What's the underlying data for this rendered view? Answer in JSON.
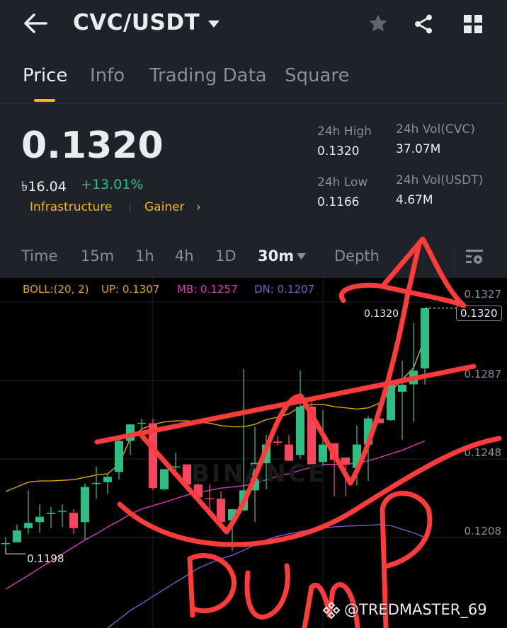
{
  "header": {
    "title": "CVC/USDT",
    "icons": [
      "back-arrow-icon",
      "dropdown-caret-icon",
      "star-icon",
      "share-icon",
      "grid-icon"
    ]
  },
  "tabs": [
    {
      "label": "Price",
      "active": true
    },
    {
      "label": "Info"
    },
    {
      "label": "Trading Data"
    },
    {
      "label": "Square"
    }
  ],
  "ticker": {
    "last_price": "0.1320",
    "fiat_price": "৳16.04",
    "change": "+13.01%",
    "tags": [
      "Infrastructure",
      "Gainer"
    ],
    "tag_chevron": "›",
    "stats": [
      {
        "label": "24h High",
        "value": "0.1320"
      },
      {
        "label": "24h Vol(CVC)",
        "value": "37.07M"
      },
      {
        "label": "24h Low",
        "value": "0.1166"
      },
      {
        "label": "24h Vol(USDT)",
        "value": "4.67M"
      }
    ]
  },
  "timeframes": {
    "items": [
      "Time",
      "15m",
      "1h",
      "4h",
      "1D",
      "30m",
      "Depth"
    ],
    "selected": "30m"
  },
  "colors": {
    "accent": "#f0b90b",
    "up": "#2ebd85",
    "down": "#f6465d",
    "boll_up": "#e0a800",
    "boll_mb": "#d63bb6",
    "boll_dn": "#7b5cc4",
    "annotation": "#ff3b3b"
  },
  "indicator": {
    "name": "BOLL:(20, 2)",
    "up": "UP: 0.1307",
    "mb": "MB: 0.1257",
    "dn": "DN: 0.1207"
  },
  "chart_data": {
    "type": "candlestick",
    "interval": "30m",
    "y_ticks": [
      "0.1327",
      "0.1287",
      "0.1248",
      "0.1208"
    ],
    "ylim": [
      0.1159,
      0.1335
    ],
    "last_price_label": "0.1320",
    "high_marker": "0.1320",
    "low_marker": "0.1198",
    "candles": [
      [
        0.12015,
        0.12048,
        0.1198,
        0.1202
      ],
      [
        0.12024,
        0.12113,
        0.12024,
        0.12083
      ],
      [
        0.12095,
        0.12285,
        0.12066,
        0.12121
      ],
      [
        0.12125,
        0.12214,
        0.12072,
        0.12152
      ],
      [
        0.12166,
        0.12202,
        0.12095,
        0.12172
      ],
      [
        0.12178,
        0.12214,
        0.12101,
        0.12182
      ],
      [
        0.12172,
        0.1219,
        0.12066,
        0.12095
      ],
      [
        0.12125,
        0.1232,
        0.12036,
        0.12302
      ],
      [
        0.12318,
        0.12404,
        0.12243,
        0.12322
      ],
      [
        0.12326,
        0.12368,
        0.12267,
        0.12353
      ],
      [
        0.12377,
        0.12545,
        0.12338,
        0.12533
      ],
      [
        0.12533,
        0.12616,
        0.12462,
        0.12616
      ],
      [
        0.1262,
        0.12646,
        0.12587,
        0.12624
      ],
      [
        0.12622,
        0.12646,
        0.12285,
        0.12296
      ],
      [
        0.1229,
        0.12391,
        0.12285,
        0.12391
      ],
      [
        0.124,
        0.12474,
        0.12368,
        0.12405
      ],
      [
        0.12415,
        0.12415,
        0.12308,
        0.12314
      ],
      [
        0.12314,
        0.1232,
        0.12249,
        0.12249
      ],
      [
        0.12245,
        0.12314,
        0.12178,
        0.12241
      ],
      [
        0.12243,
        0.12279,
        0.12119,
        0.12125
      ],
      [
        0.12134,
        0.1219,
        0.1198,
        0.1219
      ],
      [
        0.12184,
        0.12894,
        0.12178,
        0.12285
      ],
      [
        0.12285,
        0.12604,
        0.12125,
        0.12423
      ],
      [
        0.12421,
        0.12563,
        0.1229,
        0.12515
      ],
      [
        0.1253,
        0.12557,
        0.1251,
        0.12524
      ],
      [
        0.12515,
        0.12563,
        0.12433,
        0.12433
      ],
      [
        0.12462,
        0.12888,
        0.12444,
        0.12705
      ],
      [
        0.12705,
        0.12746,
        0.12415,
        0.12415
      ],
      [
        0.12427,
        0.12687,
        0.12409,
        0.12515
      ],
      [
        0.12521,
        0.12521,
        0.12255,
        0.12438
      ],
      [
        0.1245,
        0.1245,
        0.12255,
        0.12415
      ],
      [
        0.12397,
        0.1261,
        0.12308,
        0.12515
      ],
      [
        0.12515,
        0.12658,
        0.12332,
        0.12646
      ],
      [
        0.12646,
        0.12646,
        0.12622,
        0.12622
      ],
      [
        0.12637,
        0.12835,
        0.12634,
        0.12817
      ],
      [
        0.1278,
        0.12936,
        0.12539,
        0.12815
      ],
      [
        0.12817,
        0.13125,
        0.12628,
        0.12886
      ],
      [
        0.12898,
        0.132,
        0.12817,
        0.132
      ]
    ],
    "boll_up": [
      0.12279,
      0.12302,
      0.12326,
      0.12332,
      0.12332,
      0.12335,
      0.12338,
      0.1235,
      0.12362,
      0.12368,
      0.12415,
      0.12545,
      0.12592,
      0.12616,
      0.12628,
      0.12634,
      0.12634,
      0.12628,
      0.12622,
      0.1261,
      0.12604,
      0.12604,
      0.12616,
      0.1264,
      0.12652,
      0.12669,
      0.12705,
      0.12717,
      0.12717,
      0.12705,
      0.12699,
      0.12693,
      0.12699,
      0.12723,
      0.12782,
      0.12841,
      0.129,
      0.1305
    ],
    "boll_mb": [
      0.11788,
      0.11823,
      0.11858,
      0.11894,
      0.11929,
      0.11965,
      0.12,
      0.12036,
      0.12066,
      0.12101,
      0.12131,
      0.12166,
      0.1219,
      0.12208,
      0.12225,
      0.12243,
      0.12261,
      0.12273,
      0.12285,
      0.12296,
      0.12302,
      0.12308,
      0.1232,
      0.12338,
      0.12356,
      0.12368,
      0.12385,
      0.12401,
      0.12415,
      0.12415,
      0.12415,
      0.12421,
      0.12433,
      0.1245,
      0.12468,
      0.12486,
      0.1251,
      0.12533
    ],
    "boll_dn": [
      null,
      null,
      null,
      null,
      null,
      null,
      null,
      null,
      null,
      0.11593,
      0.11637,
      0.11681,
      0.11716,
      0.11752,
      0.11788,
      0.11823,
      0.11858,
      0.11894,
      0.11918,
      0.11941,
      0.11959,
      0.11983,
      0.12012,
      0.12036,
      0.12054,
      0.12066,
      0.12077,
      0.12089,
      0.12095,
      0.12101,
      0.12105,
      0.12107,
      0.12109,
      0.12113,
      0.12107,
      0.12089,
      0.12072,
      0.12048
    ]
  },
  "watermark": {
    "chart": "BINANCE",
    "credit": "@TREDMASTER_69"
  },
  "annotation_text": "DUMP"
}
